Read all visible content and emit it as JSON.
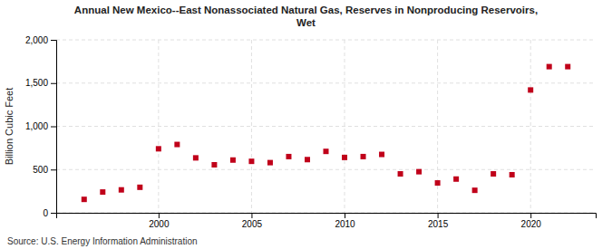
{
  "chart_data": {
    "type": "scatter",
    "title": "Annual New Mexico--East Nonassociated Natural Gas, Reserves in Nonproducing Reservoirs,\nWet",
    "y_label": "Billion Cubic Feet",
    "annotations": [
      "Source: U.S. Energy Information Administration"
    ],
    "x": [
      1996,
      1997,
      1998,
      1999,
      2000,
      2001,
      2002,
      2003,
      2004,
      2005,
      2006,
      2007,
      2008,
      2009,
      2010,
      2011,
      2012,
      2013,
      2014,
      2015,
      2016,
      2017,
      2018,
      2019,
      2020,
      2021,
      2022
    ],
    "values": [
      155,
      240,
      265,
      295,
      740,
      790,
      635,
      555,
      610,
      595,
      580,
      650,
      615,
      710,
      640,
      650,
      675,
      450,
      475,
      345,
      390,
      260,
      450,
      440,
      1420,
      1690,
      1690
    ],
    "color": "#c0001a",
    "marker": "square",
    "xlim": [
      1994.5,
      2023.5
    ],
    "xticks": [
      2000,
      2005,
      2010,
      2015,
      2020
    ],
    "ylim": [
      0,
      2000
    ],
    "yticks": [
      0,
      500,
      {
        "value": 1000,
        "label": "1,000"
      },
      {
        "value": 1500,
        "label": "1,500"
      },
      {
        "value": 2000,
        "label": "2,000"
      }
    ],
    "grid": true
  }
}
